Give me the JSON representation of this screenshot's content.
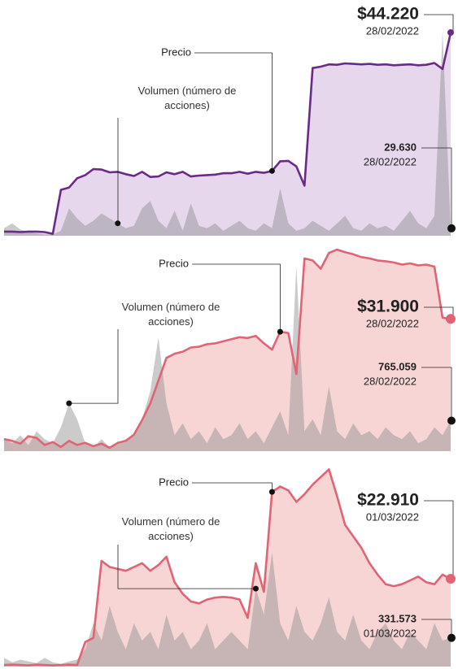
{
  "chart_data": [
    {
      "type": "area",
      "series": [
        {
          "name": "Precio",
          "color": "#6b2a86",
          "fill": "#e6d7ed",
          "values": [
            900,
            900,
            800,
            900,
            900,
            800,
            400,
            10000,
            10500,
            12500,
            13200,
            14500,
            14400,
            13800,
            13900,
            13400,
            13000,
            13900,
            12800,
            12900,
            13800,
            13400,
            13900,
            12900,
            13100,
            13200,
            13300,
            13600,
            13600,
            13900,
            13500,
            13900,
            13700,
            14100,
            16200,
            16300,
            15100,
            10900,
            36500,
            36800,
            37300,
            37200,
            37500,
            37400,
            37300,
            37400,
            37200,
            37300,
            37100,
            37200,
            37300,
            37100,
            37200,
            37600,
            36300,
            44220
          ]
        },
        {
          "name": "Volumen (número de acciones)",
          "color": "#8c8c8c",
          "axis": "y2",
          "values": [
            30000,
            50000,
            25000,
            15000,
            10000,
            5000,
            5000,
            20000,
            110000,
            70000,
            40000,
            60000,
            90000,
            70000,
            50000,
            30000,
            40000,
            110000,
            140000,
            60000,
            30000,
            100000,
            20000,
            130000,
            40000,
            30000,
            50000,
            20000,
            40000,
            60000,
            30000,
            20000,
            50000,
            30000,
            190000,
            50000,
            20000,
            30000,
            60000,
            40000,
            20000,
            50000,
            80000,
            30000,
            20000,
            50000,
            30000,
            40000,
            20000,
            60000,
            100000,
            50000,
            30000,
            80000,
            820000,
            29630
          ]
        }
      ],
      "ylim": [
        0,
        46000
      ],
      "y2lim": [
        0,
        850000
      ],
      "annotations": [
        {
          "label": "$44.220",
          "date": "28/02/2022"
        },
        {
          "label": "29.630",
          "date": "28/02/2022"
        }
      ]
    },
    {
      "type": "area",
      "series": [
        {
          "name": "Precio",
          "color": "#e06474",
          "fill": "#f8d5d5",
          "values": [
            2900,
            2500,
            1800,
            3600,
            3200,
            1500,
            2200,
            1000,
            2500,
            1500,
            2000,
            1200,
            1800,
            800,
            2000,
            2500,
            4000,
            7500,
            11500,
            17000,
            22500,
            23500,
            24000,
            25000,
            25200,
            25800,
            26000,
            26500,
            27000,
            27500,
            27300,
            27800,
            26000,
            24500,
            28800,
            28500,
            18600,
            46500,
            46000,
            44000,
            47800,
            48600,
            48000,
            47500,
            46800,
            46500,
            46000,
            45800,
            45500,
            45000,
            45300,
            44800,
            45000,
            44500,
            32200,
            31900
          ]
        },
        {
          "name": "Volumen (número de acciones)",
          "color": "#8c8c8c",
          "axis": "y2",
          "values": [
            300000,
            200000,
            400000,
            150000,
            500000,
            300000,
            200000,
            600000,
            1200000,
            800000,
            200000,
            100000,
            300000,
            100000,
            200000,
            300000,
            400000,
            800000,
            1500000,
            2850000,
            1200000,
            400000,
            700000,
            300000,
            500000,
            200000,
            600000,
            300000,
            400000,
            700000,
            300000,
            500000,
            200000,
            600000,
            1000000,
            400000,
            4650000,
            500000,
            800000,
            400000,
            1630000,
            500000,
            300000,
            700000,
            400000,
            500000,
            300000,
            600000,
            400000,
            300000,
            500000,
            200000,
            300000,
            600000,
            400000,
            765059
          ]
        }
      ],
      "ylim": [
        0,
        50000
      ],
      "y2lim": [
        0,
        5200000
      ],
      "annotations": [
        {
          "label": "$31.900",
          "date": "28/02/2022"
        },
        {
          "label": "765.059",
          "date": "28/02/2022"
        }
      ]
    },
    {
      "type": "area",
      "series": [
        {
          "name": "Precio",
          "color": "#e06474",
          "fill": "#f8d5d5",
          "values": [
            400,
            500,
            400,
            300,
            500,
            400,
            300,
            400,
            500,
            400,
            6400,
            7500,
            27600,
            26000,
            25500,
            25000,
            26000,
            27000,
            25000,
            26500,
            28700,
            22000,
            19000,
            17000,
            16500,
            17500,
            18000,
            18200,
            18000,
            17500,
            12700,
            27000,
            19500,
            45600,
            47000,
            46000,
            43000,
            45000,
            47500,
            49500,
            51500,
            44500,
            37000,
            34000,
            31000,
            27000,
            24000,
            21500,
            21000,
            21500,
            22500,
            23500,
            22000,
            21500,
            24000,
            22910
          ]
        },
        {
          "name": "Volumen (número de acciones)",
          "color": "#8c8c8c",
          "axis": "y2",
          "values": [
            100000,
            50000,
            80000,
            60000,
            40000,
            100000,
            50000,
            30000,
            60000,
            80000,
            200000,
            500000,
            300000,
            700000,
            400000,
            200000,
            500000,
            300000,
            400000,
            200000,
            600000,
            300000,
            400000,
            200000,
            300000,
            500000,
            200000,
            300000,
            400000,
            300000,
            200000,
            900000,
            600000,
            1320000,
            500000,
            300000,
            700000,
            400000,
            300000,
            500000,
            800000,
            400000,
            300000,
            600000,
            300000,
            200000,
            400000,
            500000,
            300000,
            200000,
            400000,
            300000,
            200000,
            500000,
            300000,
            331573
          ]
        }
      ],
      "ylim": [
        0,
        52000
      ],
      "y2lim": [
        0,
        2300000
      ],
      "annotations": [
        {
          "label": "$22.910",
          "date": "01/03/2022"
        },
        {
          "label": "331.573",
          "date": "01/03/2022"
        }
      ]
    }
  ]
}
